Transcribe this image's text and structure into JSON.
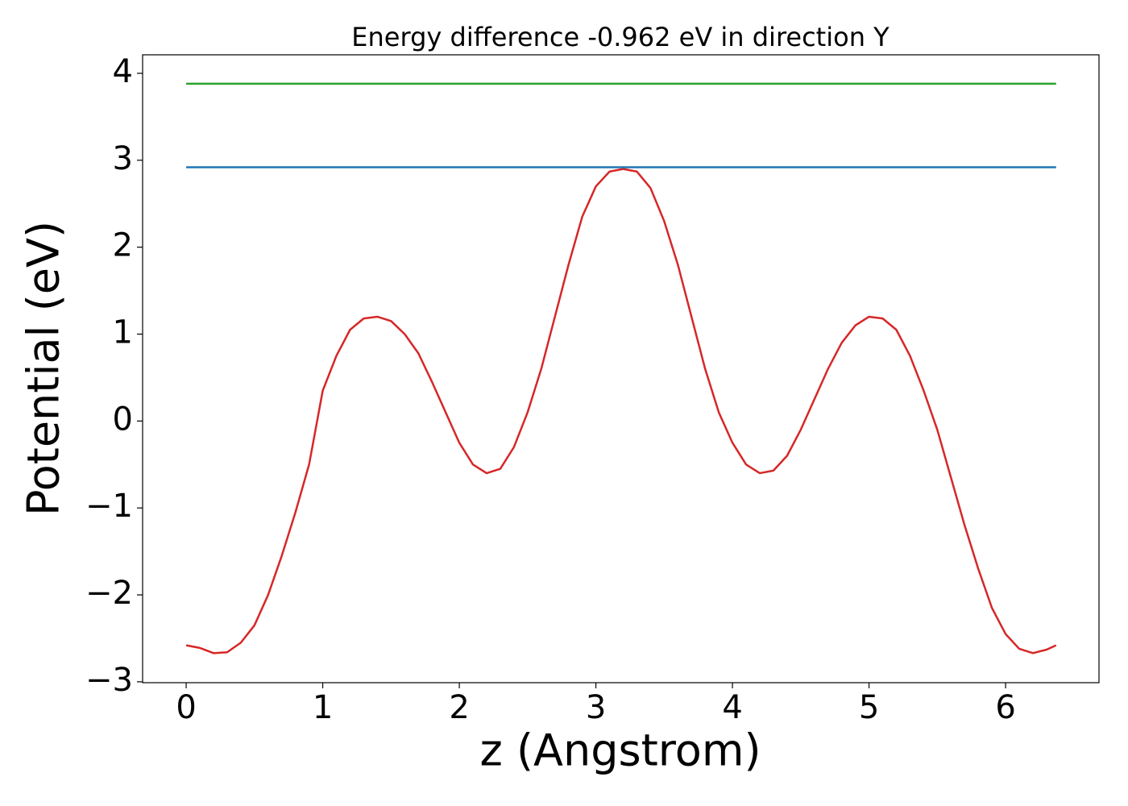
{
  "chart_data": {
    "type": "line",
    "title": "Energy difference -0.962 eV in direction Y",
    "xlabel": "z (Angstrom)",
    "ylabel": "Potential (eV)",
    "series": [
      {
        "color": "#d62728",
        "x": [
          0,
          0.1,
          0.2,
          0.3,
          0.4,
          0.5,
          0.6,
          0.7,
          0.8,
          0.9,
          1.0,
          1.1,
          1.2,
          1.3,
          1.4,
          1.5,
          1.6,
          1.7,
          1.8,
          1.9,
          2.0,
          2.1,
          2.2,
          2.3,
          2.4,
          2.5,
          2.6,
          2.7,
          2.8,
          2.9,
          3.0,
          3.1,
          3.2,
          3.3,
          3.4,
          3.5,
          3.6,
          3.7,
          3.8,
          3.9,
          4.0,
          4.1,
          4.2,
          4.3,
          4.4,
          4.5,
          4.6,
          4.7,
          4.8,
          4.9,
          5.0,
          5.1,
          5.2,
          5.3,
          5.4,
          5.5,
          5.6,
          5.7,
          5.8,
          5.9,
          6.0,
          6.1,
          6.2,
          6.3,
          6.37
        ],
        "values": [
          -2.58,
          -2.61,
          -2.67,
          -2.66,
          -2.55,
          -2.35,
          -2.0,
          -1.55,
          -1.05,
          -0.5,
          0.35,
          0.75,
          1.05,
          1.18,
          1.2,
          1.15,
          1.0,
          0.78,
          0.45,
          0.1,
          -0.25,
          -0.5,
          -0.6,
          -0.55,
          -0.3,
          0.1,
          0.6,
          1.2,
          1.8,
          2.35,
          2.7,
          2.87,
          2.9,
          2.87,
          2.68,
          2.3,
          1.8,
          1.2,
          0.6,
          0.1,
          -0.25,
          -0.5,
          -0.6,
          -0.57,
          -0.4,
          -0.1,
          0.25,
          0.6,
          0.9,
          1.1,
          1.2,
          1.18,
          1.05,
          0.75,
          0.35,
          -0.1,
          -0.65,
          -1.2,
          -1.7,
          -2.15,
          -2.45,
          -2.62,
          -2.67,
          -2.63,
          -2.58
        ]
      },
      {
        "color": "#2ca02c",
        "x": [
          0,
          6.37
        ],
        "values": [
          3.88,
          3.88
        ]
      },
      {
        "color": "#1f77b4",
        "x": [
          0,
          6.37
        ],
        "values": [
          2.92,
          2.92
        ]
      }
    ],
    "xlim": [
      -0.319,
      6.684
    ],
    "xticks": [
      0,
      1,
      2,
      3,
      4,
      5,
      6
    ],
    "ylim": [
      -3.01,
      4.213
    ],
    "yticks": [
      {
        "value": -3,
        "label": "−3"
      },
      {
        "value": -2,
        "label": "−2"
      },
      {
        "value": -1,
        "label": "−1"
      },
      0,
      1,
      2,
      3,
      4
    ],
    "grid": false
  }
}
